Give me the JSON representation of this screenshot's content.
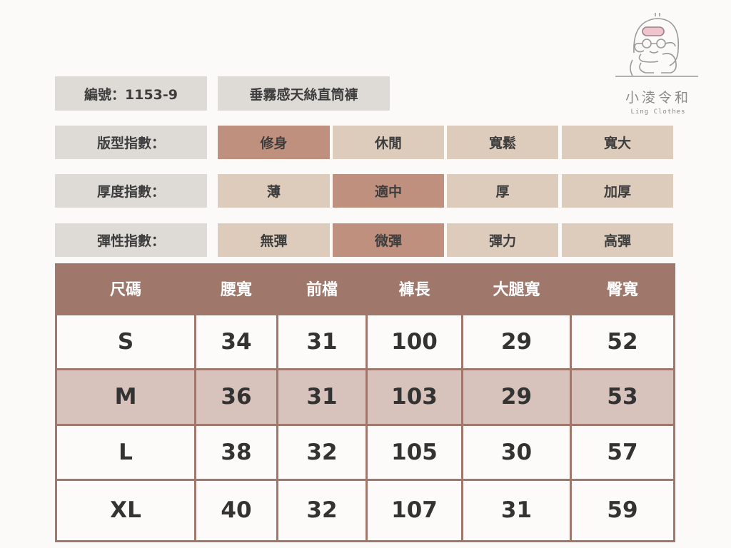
{
  "brand": {
    "name_cn": "小淩令和",
    "name_en": "Ling Clothes"
  },
  "product": {
    "code": "編號：1153-9",
    "name": "垂霧感天絲直筒褲"
  },
  "colors": {
    "label_bg": "#dedbd6",
    "option_bg": "#ddccbc",
    "selected_bg": "#c0907f",
    "header_bg": "#a0776b",
    "alt_row_bg": "#d8c3bc"
  },
  "indices": [
    {
      "label": "版型指數：",
      "options": [
        "修身",
        "休閒",
        "寬鬆",
        "寬大"
      ],
      "selected": "修身"
    },
    {
      "label": "厚度指數：",
      "options": [
        "薄",
        "適中",
        "厚",
        "加厚"
      ],
      "selected": "適中"
    },
    {
      "label": "彈性指數：",
      "options": [
        "無彈",
        "微彈",
        "彈力",
        "高彈"
      ],
      "selected": "微彈"
    }
  ],
  "size_table": {
    "headers": [
      "尺碼",
      "腰寬",
      "前檔",
      "褲長",
      "大腿寬",
      "臀寬"
    ],
    "rows": [
      [
        "S",
        "34",
        "31",
        "100",
        "29",
        "52"
      ],
      [
        "M",
        "36",
        "31",
        "103",
        "29",
        "53"
      ],
      [
        "L",
        "38",
        "32",
        "105",
        "30",
        "57"
      ],
      [
        "XL",
        "40",
        "32",
        "107",
        "31",
        "59"
      ]
    ]
  }
}
